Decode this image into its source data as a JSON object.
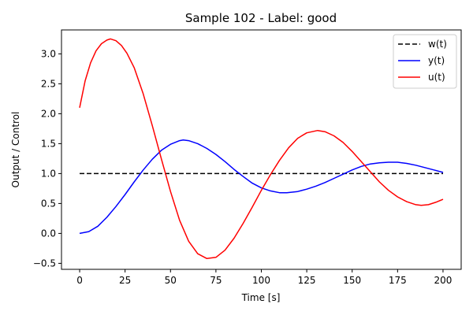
{
  "chart_data": {
    "type": "line",
    "title": "Sample 102 - Label: good",
    "xlabel": "Time [s]",
    "ylabel": "Output / Control",
    "xlim": [
      -10,
      210
    ],
    "ylim": [
      -0.6,
      3.4
    ],
    "xticks": [
      0,
      25,
      50,
      75,
      100,
      125,
      150,
      175,
      200
    ],
    "yticks": [
      -0.5,
      0.0,
      0.5,
      1.0,
      1.5,
      2.0,
      2.5,
      3.0
    ],
    "ytick_labels": [
      "−0.5",
      "0.0",
      "0.5",
      "1.0",
      "1.5",
      "2.0",
      "2.5",
      "3.0"
    ],
    "grid": false,
    "legend_position": "top-right",
    "series": [
      {
        "name": "w(t)",
        "color": "#000000",
        "dash": "dashed",
        "x": [
          0,
          200
        ],
        "y": [
          1.0,
          1.0
        ]
      },
      {
        "name": "y(t)",
        "color": "#0000ff",
        "dash": "solid",
        "x": [
          0,
          5,
          10,
          15,
          20,
          25,
          30,
          35,
          40,
          45,
          50,
          55,
          57,
          60,
          65,
          70,
          75,
          80,
          85,
          90,
          95,
          100,
          105,
          110,
          114,
          120,
          125,
          130,
          135,
          140,
          145,
          150,
          155,
          160,
          165,
          170,
          175,
          180,
          185,
          190,
          195,
          200
        ],
        "y": [
          0.0,
          0.03,
          0.12,
          0.27,
          0.45,
          0.65,
          0.86,
          1.06,
          1.24,
          1.39,
          1.49,
          1.55,
          1.56,
          1.55,
          1.5,
          1.42,
          1.32,
          1.2,
          1.07,
          0.95,
          0.84,
          0.76,
          0.71,
          0.68,
          0.68,
          0.7,
          0.74,
          0.79,
          0.85,
          0.92,
          0.99,
          1.06,
          1.12,
          1.16,
          1.18,
          1.19,
          1.19,
          1.17,
          1.14,
          1.1,
          1.06,
          1.02
        ]
      },
      {
        "name": "u(t)",
        "color": "#ff0000",
        "dash": "solid",
        "x": [
          0,
          3,
          6,
          9,
          12,
          15,
          17,
          20,
          23,
          26,
          30,
          35,
          40,
          45,
          50,
          55,
          60,
          65,
          70,
          75,
          80,
          85,
          90,
          95,
          100,
          105,
          110,
          115,
          120,
          125,
          131,
          135,
          140,
          145,
          150,
          155,
          160,
          165,
          170,
          175,
          180,
          185,
          188,
          192,
          196,
          200
        ],
        "y": [
          2.1,
          2.55,
          2.85,
          3.05,
          3.17,
          3.23,
          3.25,
          3.22,
          3.14,
          3.01,
          2.77,
          2.33,
          1.8,
          1.24,
          0.7,
          0.22,
          -0.13,
          -0.34,
          -0.42,
          -0.4,
          -0.28,
          -0.08,
          0.17,
          0.44,
          0.72,
          0.98,
          1.22,
          1.43,
          1.59,
          1.68,
          1.72,
          1.7,
          1.63,
          1.52,
          1.37,
          1.2,
          1.03,
          0.86,
          0.72,
          0.61,
          0.53,
          0.48,
          0.47,
          0.48,
          0.52,
          0.57
        ]
      }
    ]
  }
}
